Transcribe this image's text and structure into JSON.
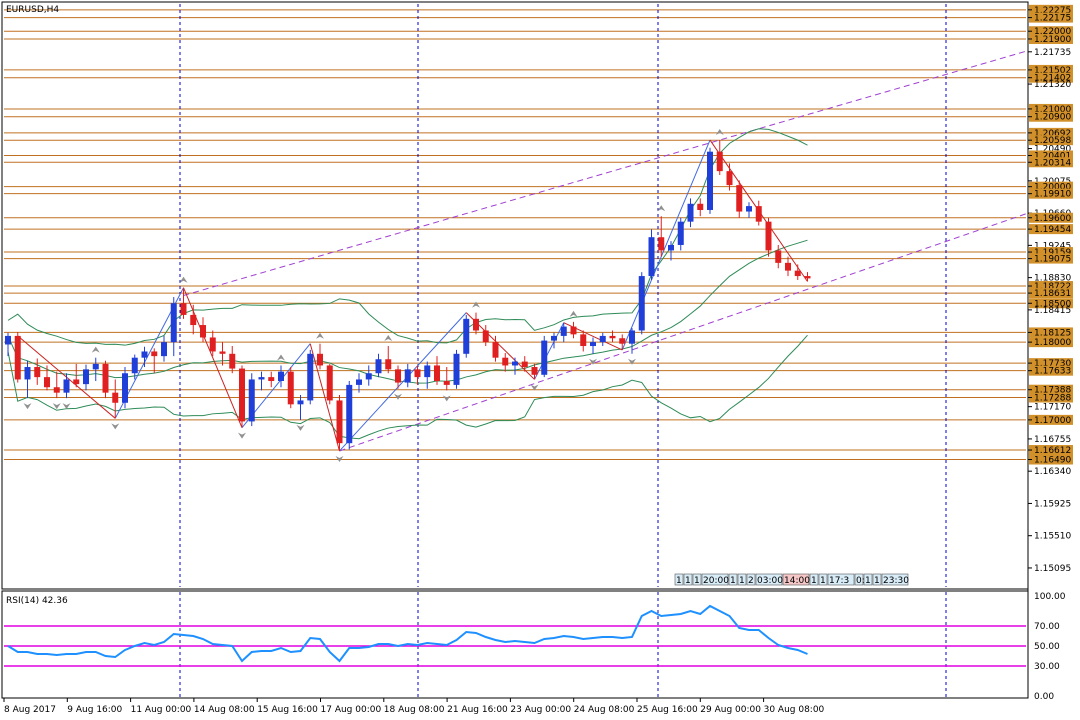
{
  "chart_title": "EURUSD,H4",
  "rsi_title": "RSI(14) 42.36",
  "colors": {
    "bull": "#1f3fd8",
    "bear": "#e02020",
    "level": "#c07020",
    "channel": "#a040d0",
    "bands": "#2e8b57",
    "zigzag_up": "#4169e1",
    "zigzag_down": "#cc2222",
    "rsi": "#1e90ff",
    "rsi_levels": "#e000e0",
    "separator": "#0000cc"
  },
  "price_axis_labels": [
    "1.22275",
    "1.22175",
    "1.22000",
    "1.21900",
    "1.21735",
    "1.21502",
    "1.21402",
    "1.21320",
    "1.21000",
    "1.20900",
    "1.20692",
    "1.20598",
    "1.20490",
    "1.20401",
    "1.20314",
    "1.20075",
    "1.20000",
    "1.19910",
    "1.19660",
    "1.19600",
    "1.19454",
    "1.19245",
    "1.19159",
    "1.19075",
    "1.18830",
    "1.18722",
    "1.18631",
    "1.18500",
    "1.18415",
    "1.18125",
    "1.18000",
    "1.17730",
    "1.17633",
    "1.17388",
    "1.17288",
    "1.17170",
    "1.17000",
    "1.16755",
    "1.16612",
    "1.16490",
    "1.16340",
    "1.15925",
    "1.15510",
    "1.15095"
  ],
  "time_axis_labels": [
    "8 Aug 2017",
    "9 Aug 16:00",
    "11 Aug 00:00",
    "14 Aug 08:00",
    "15 Aug 16:00",
    "17 Aug 00:00",
    "18 Aug 08:00",
    "21 Aug 16:00",
    "23 Aug 00:00",
    "24 Aug 08:00",
    "25 Aug 16:00",
    "29 Aug 00:00",
    "30 Aug 08:00"
  ],
  "rsi_axis_labels": [
    "100.00",
    "70.00",
    "50.00",
    "30.00",
    "0.00"
  ],
  "scale_boxes": [
    "1",
    "1",
    "1",
    "20:00",
    "1",
    "1",
    "2",
    "03:00",
    "14:00",
    "1",
    "1",
    "17:3",
    "0:",
    "1",
    "1",
    "23:30"
  ],
  "chart_data": {
    "type": "candlestick",
    "title": "EURUSD,H4",
    "ylim": [
      1.1485,
      1.2235
    ],
    "levels": [
      1.22275,
      1.22175,
      1.22,
      1.219,
      1.21502,
      1.21402,
      1.21,
      1.209,
      1.20692,
      1.20598,
      1.20401,
      1.20314,
      1.2,
      1.1991,
      1.196,
      1.19454,
      1.19159,
      1.19075,
      1.18722,
      1.18631,
      1.185,
      1.18125,
      1.18,
      1.1773,
      1.17633,
      1.17388,
      1.17288,
      1.17,
      1.16612,
      1.1649
    ],
    "candles": [
      [
        1.1797,
        1.1812,
        1.1782,
        1.1808
      ],
      [
        1.1808,
        1.1813,
        1.1748,
        1.1752
      ],
      [
        1.1752,
        1.1776,
        1.1728,
        1.1768
      ],
      [
        1.1768,
        1.1779,
        1.1745,
        1.1755
      ],
      [
        1.1755,
        1.177,
        1.1738,
        1.1742
      ],
      [
        1.1742,
        1.1762,
        1.1728,
        1.1735
      ],
      [
        1.1735,
        1.176,
        1.1728,
        1.1752
      ],
      [
        1.1752,
        1.1772,
        1.1742,
        1.1746
      ],
      [
        1.1746,
        1.1771,
        1.1738,
        1.1765
      ],
      [
        1.1765,
        1.178,
        1.175,
        1.1772
      ],
      [
        1.1772,
        1.1776,
        1.1728,
        1.1735
      ],
      [
        1.1735,
        1.1752,
        1.1702,
        1.1722
      ],
      [
        1.1722,
        1.1768,
        1.1715,
        1.176
      ],
      [
        1.176,
        1.1784,
        1.1752,
        1.178
      ],
      [
        1.178,
        1.1794,
        1.1768,
        1.1788
      ],
      [
        1.1788,
        1.1792,
        1.176,
        1.1782
      ],
      [
        1.1782,
        1.1808,
        1.1775,
        1.18
      ],
      [
        1.18,
        1.1858,
        1.1782,
        1.185
      ],
      [
        1.185,
        1.187,
        1.183,
        1.1835
      ],
      [
        1.1835,
        1.1848,
        1.181,
        1.1822
      ],
      [
        1.1822,
        1.1832,
        1.18,
        1.1806
      ],
      [
        1.1806,
        1.1815,
        1.1782,
        1.1788
      ],
      [
        1.1788,
        1.18,
        1.177,
        1.1785
      ],
      [
        1.1785,
        1.1795,
        1.176,
        1.1766
      ],
      [
        1.1766,
        1.177,
        1.169,
        1.1698
      ],
      [
        1.1698,
        1.176,
        1.1692,
        1.1752
      ],
      [
        1.1752,
        1.1762,
        1.1738,
        1.1755
      ],
      [
        1.1755,
        1.1762,
        1.1742,
        1.175
      ],
      [
        1.175,
        1.177,
        1.1742,
        1.1762
      ],
      [
        1.1762,
        1.1768,
        1.1715,
        1.172
      ],
      [
        1.172,
        1.1732,
        1.17,
        1.1725
      ],
      [
        1.1725,
        1.179,
        1.172,
        1.1785
      ],
      [
        1.1785,
        1.1798,
        1.1765,
        1.177
      ],
      [
        1.177,
        1.1772,
        1.172,
        1.1725
      ],
      [
        1.1725,
        1.1732,
        1.166,
        1.167
      ],
      [
        1.167,
        1.175,
        1.1662,
        1.1745
      ],
      [
        1.1745,
        1.176,
        1.1735,
        1.1752
      ],
      [
        1.1752,
        1.177,
        1.1744,
        1.176
      ],
      [
        1.176,
        1.1785,
        1.1755,
        1.1778
      ],
      [
        1.1778,
        1.1795,
        1.176,
        1.1765
      ],
      [
        1.1765,
        1.177,
        1.174,
        1.1748
      ],
      [
        1.1748,
        1.1772,
        1.1742,
        1.1765
      ],
      [
        1.1765,
        1.177,
        1.1745,
        1.1755
      ],
      [
        1.1755,
        1.1775,
        1.174,
        1.177
      ],
      [
        1.177,
        1.1782,
        1.1745,
        1.175
      ],
      [
        1.175,
        1.1768,
        1.1738,
        1.1745
      ],
      [
        1.1745,
        1.179,
        1.174,
        1.1785
      ],
      [
        1.1785,
        1.1835,
        1.178,
        1.183
      ],
      [
        1.183,
        1.1838,
        1.181,
        1.1815
      ],
      [
        1.1815,
        1.1822,
        1.1795,
        1.18
      ],
      [
        1.18,
        1.1808,
        1.1775,
        1.178
      ],
      [
        1.178,
        1.1786,
        1.1762,
        1.177
      ],
      [
        1.177,
        1.178,
        1.1758,
        1.1775
      ],
      [
        1.1775,
        1.1782,
        1.1762,
        1.1768
      ],
      [
        1.1768,
        1.1772,
        1.1752,
        1.1758
      ],
      [
        1.1758,
        1.1808,
        1.1755,
        1.1802
      ],
      [
        1.1802,
        1.1812,
        1.1792,
        1.1808
      ],
      [
        1.1808,
        1.1825,
        1.18,
        1.182
      ],
      [
        1.182,
        1.1826,
        1.1805,
        1.181
      ],
      [
        1.181,
        1.1815,
        1.1788,
        1.1795
      ],
      [
        1.1795,
        1.1806,
        1.1785,
        1.18
      ],
      [
        1.18,
        1.1812,
        1.1795,
        1.1808
      ],
      [
        1.1808,
        1.1815,
        1.18,
        1.1805
      ],
      [
        1.1805,
        1.181,
        1.179,
        1.1798
      ],
      [
        1.1798,
        1.1818,
        1.1785,
        1.1815
      ],
      [
        1.1815,
        1.189,
        1.181,
        1.1885
      ],
      [
        1.1885,
        1.1945,
        1.188,
        1.1935
      ],
      [
        1.1935,
        1.1962,
        1.191,
        1.1918
      ],
      [
        1.1918,
        1.193,
        1.1905,
        1.1925
      ],
      [
        1.1925,
        1.196,
        1.1918,
        1.1955
      ],
      [
        1.1955,
        1.1985,
        1.1948,
        1.1978
      ],
      [
        1.1978,
        1.1985,
        1.1962,
        1.197
      ],
      [
        1.197,
        1.205,
        1.1965,
        1.2045
      ],
      [
        1.2045,
        1.206,
        1.2015,
        1.202
      ],
      [
        1.202,
        1.203,
        1.1995,
        1.2002
      ],
      [
        1.2002,
        1.2008,
        1.196,
        1.1968
      ],
      [
        1.1968,
        1.198,
        1.196,
        1.1975
      ],
      [
        1.1975,
        1.1982,
        1.195,
        1.1955
      ],
      [
        1.1955,
        1.196,
        1.191,
        1.1918
      ],
      [
        1.1918,
        1.1925,
        1.1895,
        1.1902
      ],
      [
        1.1902,
        1.191,
        1.1885,
        1.1892
      ],
      [
        1.1892,
        1.19,
        1.188,
        1.1885
      ],
      [
        1.1885,
        1.189,
        1.1878,
        1.1882
      ]
    ],
    "rsi_series": [
      50,
      44,
      44,
      42,
      42,
      41,
      42,
      42,
      44,
      44,
      40,
      39,
      46,
      50,
      53,
      51,
      54,
      62,
      61,
      60,
      57,
      52,
      51,
      50,
      35,
      44,
      45,
      45,
      48,
      44,
      45,
      58,
      57,
      44,
      35,
      48,
      48,
      49,
      52,
      52,
      50,
      52,
      51,
      53,
      52,
      51,
      56,
      64,
      63,
      59,
      56,
      54,
      55,
      54,
      53,
      57,
      58,
      60,
      59,
      57,
      58,
      59,
      59,
      58,
      59,
      80,
      85,
      80,
      81,
      82,
      85,
      82,
      90,
      85,
      80,
      68,
      66,
      66,
      58,
      51,
      48,
      46,
      42
    ],
    "rsi_levels": [
      70,
      50,
      30
    ]
  }
}
